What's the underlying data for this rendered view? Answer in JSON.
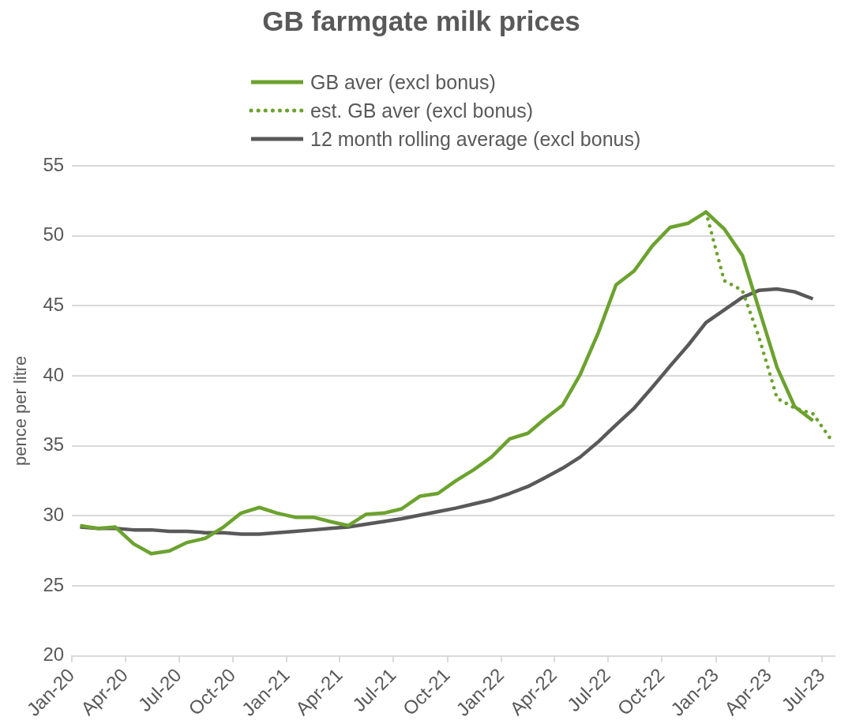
{
  "chart_data": {
    "type": "line",
    "title": "GB farmgate milk prices",
    "ylabel": "pence per litre",
    "x": [
      "2020-01-15",
      "2020-02-15",
      "2020-03-15",
      "2020-04-15",
      "2020-05-15",
      "2020-06-15",
      "2020-07-15",
      "2020-08-15",
      "2020-09-15",
      "2020-10-15",
      "2020-11-15",
      "2020-12-15",
      "2021-01-15",
      "2021-02-15",
      "2021-03-15",
      "2021-04-15",
      "2021-05-15",
      "2021-06-15",
      "2021-07-15",
      "2021-08-15",
      "2021-09-15",
      "2021-10-15",
      "2021-11-15",
      "2021-12-15",
      "2022-01-15",
      "2022-02-15",
      "2022-03-15",
      "2022-04-15",
      "2022-05-15",
      "2022-06-15",
      "2022-07-15",
      "2022-08-15",
      "2022-09-15",
      "2022-10-15",
      "2022-11-15",
      "2022-12-15",
      "2023-01-15",
      "2023-02-15",
      "2023-03-15",
      "2023-04-15",
      "2023-05-15",
      "2023-06-15"
    ],
    "series": [
      {
        "name": "GB aver (excl bonus)",
        "color": "#6ca22f",
        "line_style": "solid",
        "values": [
          29.3,
          29.1,
          29.2,
          28.0,
          27.3,
          27.5,
          28.1,
          28.4,
          29.2,
          30.2,
          30.6,
          30.2,
          29.9,
          29.9,
          29.6,
          29.3,
          30.1,
          30.2,
          30.5,
          31.4,
          31.6,
          32.5,
          33.3,
          34.2,
          35.5,
          35.9,
          36.9,
          37.9,
          40.1,
          43.1,
          46.5,
          47.5,
          49.3,
          50.6,
          50.9,
          51.7,
          50.5,
          48.6,
          44.8,
          40.6,
          37.8,
          36.8
        ]
      },
      {
        "name": "est. GB aver (excl bonus)",
        "color": "#6ca22f",
        "line_style": "dotted",
        "x": [
          "2022-12-15",
          "2023-01-15",
          "2023-02-15",
          "2023-03-15",
          "2023-04-15",
          "2023-05-15",
          "2023-06-15",
          "2023-07-15"
        ],
        "values": [
          51.7,
          46.8,
          46.1,
          42.8,
          38.4,
          37.7,
          37.3,
          35.5
        ]
      },
      {
        "name": "12 month rolling average (excl bonus)",
        "color": "#595959",
        "line_style": "solid",
        "values": [
          29.2,
          29.1,
          29.1,
          29.0,
          29.0,
          28.9,
          28.9,
          28.8,
          28.8,
          28.7,
          28.7,
          28.8,
          28.9,
          29.0,
          29.1,
          29.2,
          29.4,
          29.6,
          29.8,
          30.05,
          30.3,
          30.55,
          30.85,
          31.15,
          31.6,
          32.1,
          32.7,
          33.4,
          34.2,
          35.3,
          36.5,
          37.7,
          39.2,
          40.7,
          42.2,
          43.8,
          44.7,
          45.6,
          46.1,
          46.2,
          46.0,
          45.5
        ]
      }
    ],
    "xlim": [
      "2020-01-01",
      "2023-07-22"
    ],
    "xticks": [
      {
        "value": "2020-01",
        "label": "Jan-20"
      },
      {
        "value": "2020-04",
        "label": "Apr-20"
      },
      {
        "value": "2020-07",
        "label": "Jul-20"
      },
      {
        "value": "2020-10",
        "label": "Oct-20"
      },
      {
        "value": "2021-01",
        "label": "Jan-21"
      },
      {
        "value": "2021-04",
        "label": "Apr-21"
      },
      {
        "value": "2021-07",
        "label": "Jul-21"
      },
      {
        "value": "2021-10",
        "label": "Oct-21"
      },
      {
        "value": "2022-01",
        "label": "Jan-22"
      },
      {
        "value": "2022-04",
        "label": "Apr-22"
      },
      {
        "value": "2022-07",
        "label": "Jul-22"
      },
      {
        "value": "2022-10",
        "label": "Oct-22"
      },
      {
        "value": "2023-01",
        "label": "Jan-23"
      },
      {
        "value": "2023-04",
        "label": "Apr-23"
      },
      {
        "value": "2023-07",
        "label": "Jul-23"
      }
    ],
    "ylim": [
      20,
      55
    ],
    "yticks": [
      20,
      25,
      30,
      35,
      40,
      45,
      50,
      55
    ],
    "grid": "y",
    "legend": "top",
    "marker": "none"
  }
}
